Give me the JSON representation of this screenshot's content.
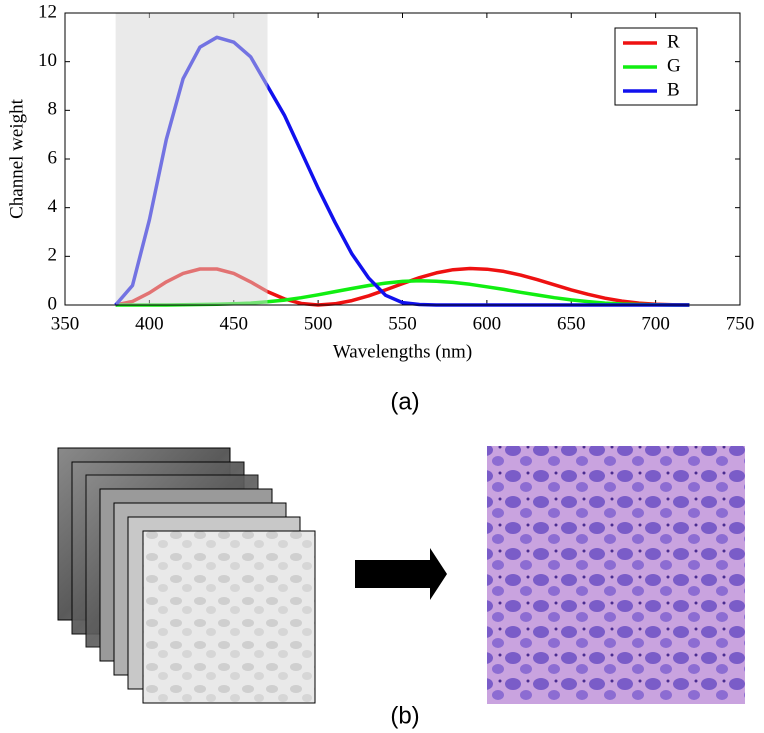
{
  "chart_data": {
    "type": "line",
    "x": [
      380,
      390,
      400,
      410,
      420,
      430,
      440,
      450,
      460,
      470,
      480,
      490,
      500,
      510,
      520,
      530,
      540,
      550,
      560,
      570,
      580,
      590,
      600,
      610,
      620,
      630,
      640,
      650,
      660,
      670,
      680,
      690,
      700,
      710,
      720
    ],
    "series": [
      {
        "name": "R",
        "color": "#ee1111",
        "values": [
          0,
          0.15,
          0.5,
          0.95,
          1.3,
          1.48,
          1.48,
          1.3,
          0.95,
          0.55,
          0.25,
          0.06,
          0,
          0.05,
          0.18,
          0.38,
          0.62,
          0.88,
          1.12,
          1.32,
          1.45,
          1.5,
          1.47,
          1.38,
          1.23,
          1.04,
          0.83,
          0.62,
          0.44,
          0.28,
          0.16,
          0.08,
          0.03,
          0.01,
          0
        ]
      },
      {
        "name": "G",
        "color": "#11ee11",
        "values": [
          0,
          0,
          0,
          0,
          0.01,
          0.02,
          0.03,
          0.05,
          0.08,
          0.13,
          0.2,
          0.3,
          0.42,
          0.55,
          0.68,
          0.8,
          0.9,
          0.97,
          1.0,
          0.98,
          0.93,
          0.85,
          0.75,
          0.64,
          0.52,
          0.41,
          0.3,
          0.21,
          0.14,
          0.08,
          0.04,
          0.02,
          0.01,
          0,
          0
        ]
      },
      {
        "name": "B",
        "color": "#1111ee",
        "values": [
          0,
          0.8,
          3.5,
          6.8,
          9.3,
          10.6,
          11.0,
          10.8,
          10.2,
          9.0,
          7.8,
          6.3,
          4.8,
          3.4,
          2.1,
          1.1,
          0.4,
          0.1,
          0.02,
          0,
          0,
          0,
          0,
          0,
          0,
          0,
          0,
          0,
          0,
          0,
          0,
          0,
          0,
          0,
          0
        ]
      }
    ],
    "xlim": [
      350,
      750
    ],
    "ylim": [
      0,
      12
    ],
    "xticks": [
      350,
      400,
      450,
      500,
      550,
      600,
      650,
      700,
      750
    ],
    "yticks": [
      0,
      2,
      4,
      6,
      8,
      10,
      12
    ],
    "xlabel": "Wavelengths (nm)",
    "ylabel": "Channel weight",
    "legend": "upper right",
    "shaded_range": [
      380,
      470
    ],
    "panel_label": "(a)"
  },
  "figure": {
    "panel_b_label": "(b)"
  }
}
